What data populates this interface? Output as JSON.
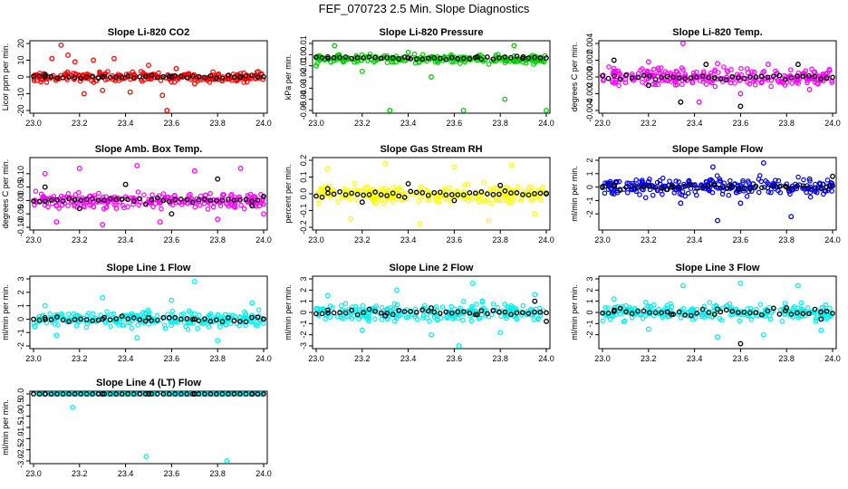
{
  "title": "FEF_070723  2.5 Min. Slope Diagnostics",
  "chart_data": [
    {
      "type": "scatter",
      "title": "Slope Li-820 CO2",
      "xlabel": "",
      "ylabel": "Licor ppm per min.",
      "xlim": [
        23.0,
        24.0
      ],
      "ylim": [
        -20,
        20
      ],
      "xticks": [
        "23.0",
        "23.2",
        "23.4",
        "23.6",
        "23.8",
        "24.0"
      ],
      "yticks": [
        "-20",
        "-10",
        "0",
        "10",
        "20"
      ],
      "grid": false,
      "series": [
        {
          "color": "#ff0000",
          "values": [
            [
              23.12,
              19
            ],
            [
              23.08,
              11
            ],
            [
              23.15,
              13
            ],
            [
              23.18,
              9
            ],
            [
              23.22,
              -10
            ],
            [
              23.26,
              10
            ],
            [
              23.3,
              -8
            ],
            [
              23.35,
              11
            ],
            [
              23.42,
              -9
            ],
            [
              23.5,
              7
            ],
            [
              23.56,
              -11
            ],
            [
              23.58,
              -20
            ],
            [
              23.62,
              5
            ],
            [
              23.7,
              -4
            ],
            [
              23.78,
              3
            ],
            [
              23.9,
              2
            ]
          ]
        },
        {
          "color": "#000000",
          "values": [
            [
              23.05,
              0
            ],
            [
              23.3,
              0
            ],
            [
              23.6,
              0
            ],
            [
              23.9,
              0
            ]
          ]
        }
      ]
    },
    {
      "type": "scatter",
      "title": "Slope Li-820 Pressure",
      "xlabel": "",
      "ylabel": "kPa per min.",
      "xlim": [
        23.0,
        24.0
      ],
      "ylim": [
        -0.05,
        0.01
      ],
      "xticks": [
        "23.0",
        "23.2",
        "23.4",
        "23.6",
        "23.8",
        "24.0"
      ],
      "yticks": [
        "-0.05",
        "-0.04",
        "-0.03",
        "-0.02",
        "-0.01",
        "0.00",
        "0.01"
      ],
      "grid": false,
      "series": [
        {
          "color": "#00cc00",
          "values": [
            [
              23.0,
              -0.01
            ],
            [
              23.08,
              0.008
            ],
            [
              23.2,
              -0.015
            ],
            [
              23.32,
              -0.05
            ],
            [
              23.4,
              0.002
            ],
            [
              23.5,
              -0.02
            ],
            [
              23.64,
              -0.05
            ],
            [
              23.82,
              -0.04
            ],
            [
              23.86,
              0.008
            ],
            [
              24.0,
              -0.05
            ]
          ]
        },
        {
          "color": "#000000",
          "values": [
            [
              23.05,
              -0.002
            ],
            [
              23.4,
              -0.003
            ],
            [
              23.7,
              -0.002
            ],
            [
              23.9,
              -0.002
            ]
          ]
        }
      ]
    },
    {
      "type": "scatter",
      "title": "Slope Li-820 Temp.",
      "xlabel": "",
      "ylabel": "degrees C per min.",
      "xlim": [
        23.0,
        24.0
      ],
      "ylim": [
        -0.004,
        0.004
      ],
      "xticks": [
        "23.0",
        "23.2",
        "23.4",
        "23.6",
        "23.8",
        "24.0"
      ],
      "yticks": [
        "-0.004",
        "-0.002",
        "0.000",
        "0.002",
        "0.004"
      ],
      "grid": false,
      "series": [
        {
          "color": "#ff00ff",
          "values": [
            [
              23.05,
              0.001
            ],
            [
              23.2,
              0.0018
            ],
            [
              23.35,
              0.004
            ],
            [
              23.42,
              -0.003
            ],
            [
              23.5,
              0.0016
            ],
            [
              23.6,
              -0.002
            ],
            [
              23.72,
              0.0015
            ],
            [
              23.9,
              -0.0015
            ]
          ]
        },
        {
          "color": "#000000",
          "values": [
            [
              23.05,
              0.002
            ],
            [
              23.2,
              -0.001
            ],
            [
              23.34,
              -0.003
            ],
            [
              23.45,
              0.0015
            ],
            [
              23.6,
              -0.0035
            ],
            [
              23.85,
              0.0015
            ]
          ]
        }
      ]
    },
    {
      "type": "scatter",
      "title": "Slope Amb. Box Temp.",
      "xlabel": "",
      "ylabel": "degrees C per min.",
      "xlim": [
        23.0,
        24.0
      ],
      "ylim": [
        -0.1,
        0.15
      ],
      "xticks": [
        "23.0",
        "23.2",
        "23.4",
        "23.6",
        "23.8",
        "24.0"
      ],
      "yticks": [
        "-0.10",
        "-0.05",
        "0.00",
        "0.05",
        "0.10"
      ],
      "grid": false,
      "series": [
        {
          "color": "#ff00ff",
          "values": [
            [
              23.05,
              0.1
            ],
            [
              23.1,
              -0.08
            ],
            [
              23.2,
              0.12
            ],
            [
              23.3,
              -0.09
            ],
            [
              23.45,
              0.13
            ],
            [
              23.55,
              -0.08
            ],
            [
              23.7,
              0.11
            ],
            [
              23.8,
              -0.07
            ],
            [
              23.9,
              0.12
            ],
            [
              24.0,
              -0.05
            ]
          ]
        },
        {
          "color": "#000000",
          "values": [
            [
              23.05,
              0.05
            ],
            [
              23.2,
              -0.03
            ],
            [
              23.4,
              0.06
            ],
            [
              23.6,
              -0.05
            ],
            [
              23.8,
              0.08
            ],
            [
              23.95,
              -0.02
            ]
          ]
        }
      ]
    },
    {
      "type": "scatter",
      "title": "Slope Gas Stream RH",
      "xlabel": "",
      "ylabel": "percent per min.",
      "xlim": [
        23.0,
        24.0
      ],
      "ylim": [
        -0.2,
        0.2
      ],
      "xticks": [
        "23.0",
        "23.2",
        "23.4",
        "23.6",
        "23.8",
        "24.0"
      ],
      "yticks": [
        "-0.2",
        "-0.1",
        "0.0",
        "0.1",
        "0.2"
      ],
      "grid": false,
      "series": [
        {
          "color": "#ffff00",
          "values": [
            [
              23.05,
              0.15
            ],
            [
              23.15,
              -0.15
            ],
            [
              23.3,
              0.18
            ],
            [
              23.45,
              -0.18
            ],
            [
              23.6,
              0.16
            ],
            [
              23.75,
              -0.16
            ],
            [
              23.85,
              0.17
            ],
            [
              23.95,
              -0.12
            ]
          ]
        },
        {
          "color": "#000000",
          "values": [
            [
              23.05,
              0.03
            ],
            [
              23.2,
              -0.05
            ],
            [
              23.4,
              0.06
            ],
            [
              23.6,
              -0.04
            ],
            [
              23.8,
              0.05
            ],
            [
              24.0,
              0.0
            ]
          ]
        }
      ]
    },
    {
      "type": "scatter",
      "title": "Slope Sample Flow",
      "xlabel": "",
      "ylabel": "ml/min per min.",
      "xlim": [
        23.0,
        24.0
      ],
      "ylim": [
        -3,
        2
      ],
      "xticks": [
        "23.0",
        "23.2",
        "23.4",
        "23.6",
        "23.8",
        "24.0"
      ],
      "yticks": [
        "-2",
        "-1",
        "0",
        "1",
        "2"
      ],
      "grid": false,
      "series": [
        {
          "color": "#0000ee",
          "values": [
            [
              23.05,
              -0.5
            ],
            [
              23.2,
              0.4
            ],
            [
              23.34,
              -1.2
            ],
            [
              23.48,
              1.5
            ],
            [
              23.5,
              -2.5
            ],
            [
              23.6,
              -1.2
            ],
            [
              23.7,
              1.8
            ],
            [
              23.82,
              -2.2
            ],
            [
              23.9,
              0.6
            ]
          ]
        },
        {
          "color": "#000000",
          "values": [
            [
              23.05,
              0.1
            ],
            [
              23.3,
              0.0
            ],
            [
              23.55,
              0.1
            ],
            [
              23.8,
              0.0
            ],
            [
              24.0,
              0.8
            ]
          ]
        }
      ]
    },
    {
      "type": "scatter",
      "title": "Slope Line 1 Flow",
      "xlabel": "",
      "ylabel": "ml/min per min.",
      "xlim": [
        23.0,
        24.0
      ],
      "ylim": [
        -2,
        3
      ],
      "xticks": [
        "23.0",
        "23.2",
        "23.4",
        "23.6",
        "23.8",
        "24.0"
      ],
      "yticks": [
        "-2",
        "-1",
        "0",
        "1",
        "2",
        "3"
      ],
      "grid": false,
      "series": [
        {
          "color": "#00eeee",
          "values": [
            [
              23.05,
              1.0
            ],
            [
              23.1,
              -1.2
            ],
            [
              23.3,
              1.6
            ],
            [
              23.45,
              -1.4
            ],
            [
              23.6,
              1.4
            ],
            [
              23.7,
              2.8
            ],
            [
              23.8,
              -1.6
            ],
            [
              23.95,
              1.2
            ]
          ]
        },
        {
          "color": "#000000",
          "values": [
            [
              23.05,
              0.1
            ],
            [
              23.3,
              0.0
            ],
            [
              23.5,
              0.1
            ],
            [
              23.7,
              0.0
            ],
            [
              24.0,
              0.0
            ]
          ]
        }
      ]
    },
    {
      "type": "scatter",
      "title": "Slope Line 2 Flow",
      "xlabel": "",
      "ylabel": "ml/min per min.",
      "xlim": [
        23.0,
        24.0
      ],
      "ylim": [
        -3,
        3
      ],
      "xticks": [
        "23.0",
        "23.2",
        "23.4",
        "23.6",
        "23.8",
        "24.0"
      ],
      "yticks": [
        "-3",
        "-2",
        "-1",
        "0",
        "1",
        "2",
        "3"
      ],
      "grid": false,
      "series": [
        {
          "color": "#00eeee",
          "values": [
            [
              23.05,
              1.5
            ],
            [
              23.2,
              -1.6
            ],
            [
              23.35,
              2.0
            ],
            [
              23.5,
              -2.0
            ],
            [
              23.62,
              -3.0
            ],
            [
              23.68,
              2.6
            ],
            [
              23.8,
              -1.8
            ],
            [
              23.95,
              1.6
            ]
          ]
        },
        {
          "color": "#000000",
          "values": [
            [
              23.05,
              0.2
            ],
            [
              23.3,
              -0.3
            ],
            [
              23.5,
              0.4
            ],
            [
              23.7,
              -0.2
            ],
            [
              23.95,
              1.0
            ],
            [
              24.0,
              -0.8
            ]
          ]
        }
      ]
    },
    {
      "type": "scatter",
      "title": "Slope Line 3 Flow",
      "xlabel": "",
      "ylabel": "ml/min per min.",
      "xlim": [
        23.0,
        24.0
      ],
      "ylim": [
        -3,
        3
      ],
      "xticks": [
        "23.0",
        "23.2",
        "23.4",
        "23.6",
        "23.8",
        "24.0"
      ],
      "yticks": [
        "-2",
        "-1",
        "0",
        "1",
        "2",
        "3"
      ],
      "grid": false,
      "series": [
        {
          "color": "#00eeee",
          "values": [
            [
              23.05,
              1.2
            ],
            [
              23.2,
              -1.5
            ],
            [
              23.35,
              2.4
            ],
            [
              23.5,
              -2.2
            ],
            [
              23.6,
              2.6
            ],
            [
              23.7,
              -2.0
            ],
            [
              23.85,
              2.4
            ],
            [
              23.95,
              -1.6
            ]
          ]
        },
        {
          "color": "#000000",
          "values": [
            [
              23.05,
              0.1
            ],
            [
              23.3,
              -0.2
            ],
            [
              23.5,
              0.3
            ],
            [
              23.6,
              -2.8
            ],
            [
              23.8,
              0.4
            ],
            [
              23.95,
              -0.6
            ]
          ]
        }
      ]
    },
    {
      "type": "scatter",
      "title": "Slope Line 4 (LT) Flow",
      "xlabel": "",
      "ylabel": "ml/min per min.",
      "xlim": [
        23.0,
        24.0
      ],
      "ylim": [
        -3,
        0
      ],
      "xticks": [
        "23.0",
        "23.2",
        "23.4",
        "23.6",
        "23.8",
        "24.0"
      ],
      "yticks": [
        "-3.0",
        "-2.5",
        "-2.0",
        "-1.5",
        "-1.0",
        "-0.5",
        "0.0"
      ],
      "grid": false,
      "series": [
        {
          "color": "#00eeee",
          "values": [
            [
              23.05,
              0.0
            ],
            [
              23.17,
              -0.6
            ],
            [
              23.3,
              0.0
            ],
            [
              23.49,
              -2.8
            ],
            [
              23.6,
              0.0
            ],
            [
              23.84,
              -3.0
            ],
            [
              23.95,
              0.0
            ]
          ]
        },
        {
          "color": "#000000",
          "values": [
            [
              23.05,
              0.0
            ],
            [
              23.3,
              0.0
            ],
            [
              23.5,
              0.0
            ],
            [
              23.7,
              0.0
            ],
            [
              23.95,
              0.0
            ]
          ]
        }
      ]
    }
  ]
}
